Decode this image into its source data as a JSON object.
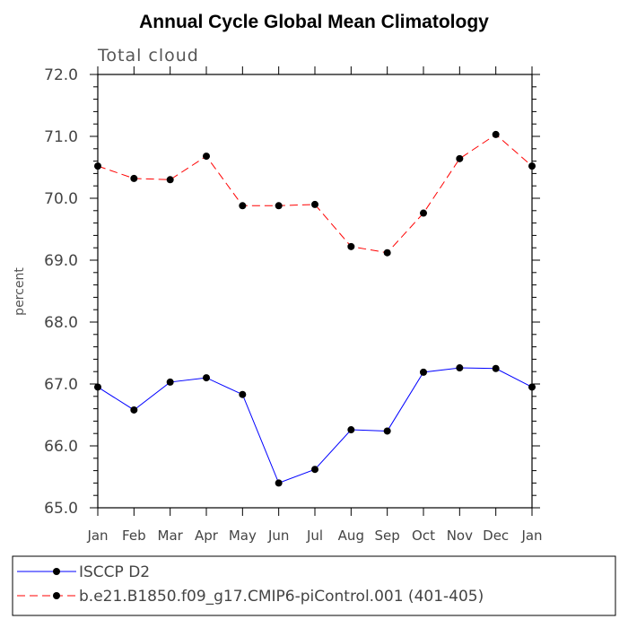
{
  "chart_data": {
    "type": "line",
    "title": "Annual Cycle Global Mean Climatology",
    "subtitle": "Total cloud",
    "xlabel": "",
    "ylabel": "percent",
    "categories": [
      "Jan",
      "Feb",
      "Mar",
      "Apr",
      "May",
      "Jun",
      "Jul",
      "Aug",
      "Sep",
      "Oct",
      "Nov",
      "Dec",
      "Jan"
    ],
    "ylim": [
      65.0,
      72.0
    ],
    "yticks": [
      "65.0",
      "66.0",
      "67.0",
      "68.0",
      "69.0",
      "70.0",
      "71.0",
      "72.0"
    ],
    "grid": false,
    "legend_position": "bottom",
    "series": [
      {
        "name": "ISCCP D2",
        "color": "#0000ff",
        "dash": "solid",
        "values": [
          66.95,
          66.58,
          67.03,
          67.1,
          66.83,
          65.4,
          65.62,
          66.26,
          66.24,
          67.19,
          67.26,
          67.25,
          66.95
        ]
      },
      {
        "name": "b.e21.B1850.f09_g17.CMIP6-piControl.001 (401-405)",
        "color": "#ff0000",
        "dash": "dashed",
        "values": [
          70.52,
          70.32,
          70.3,
          70.68,
          69.88,
          69.88,
          69.9,
          69.22,
          69.12,
          69.76,
          70.64,
          71.03,
          70.52
        ]
      }
    ]
  }
}
